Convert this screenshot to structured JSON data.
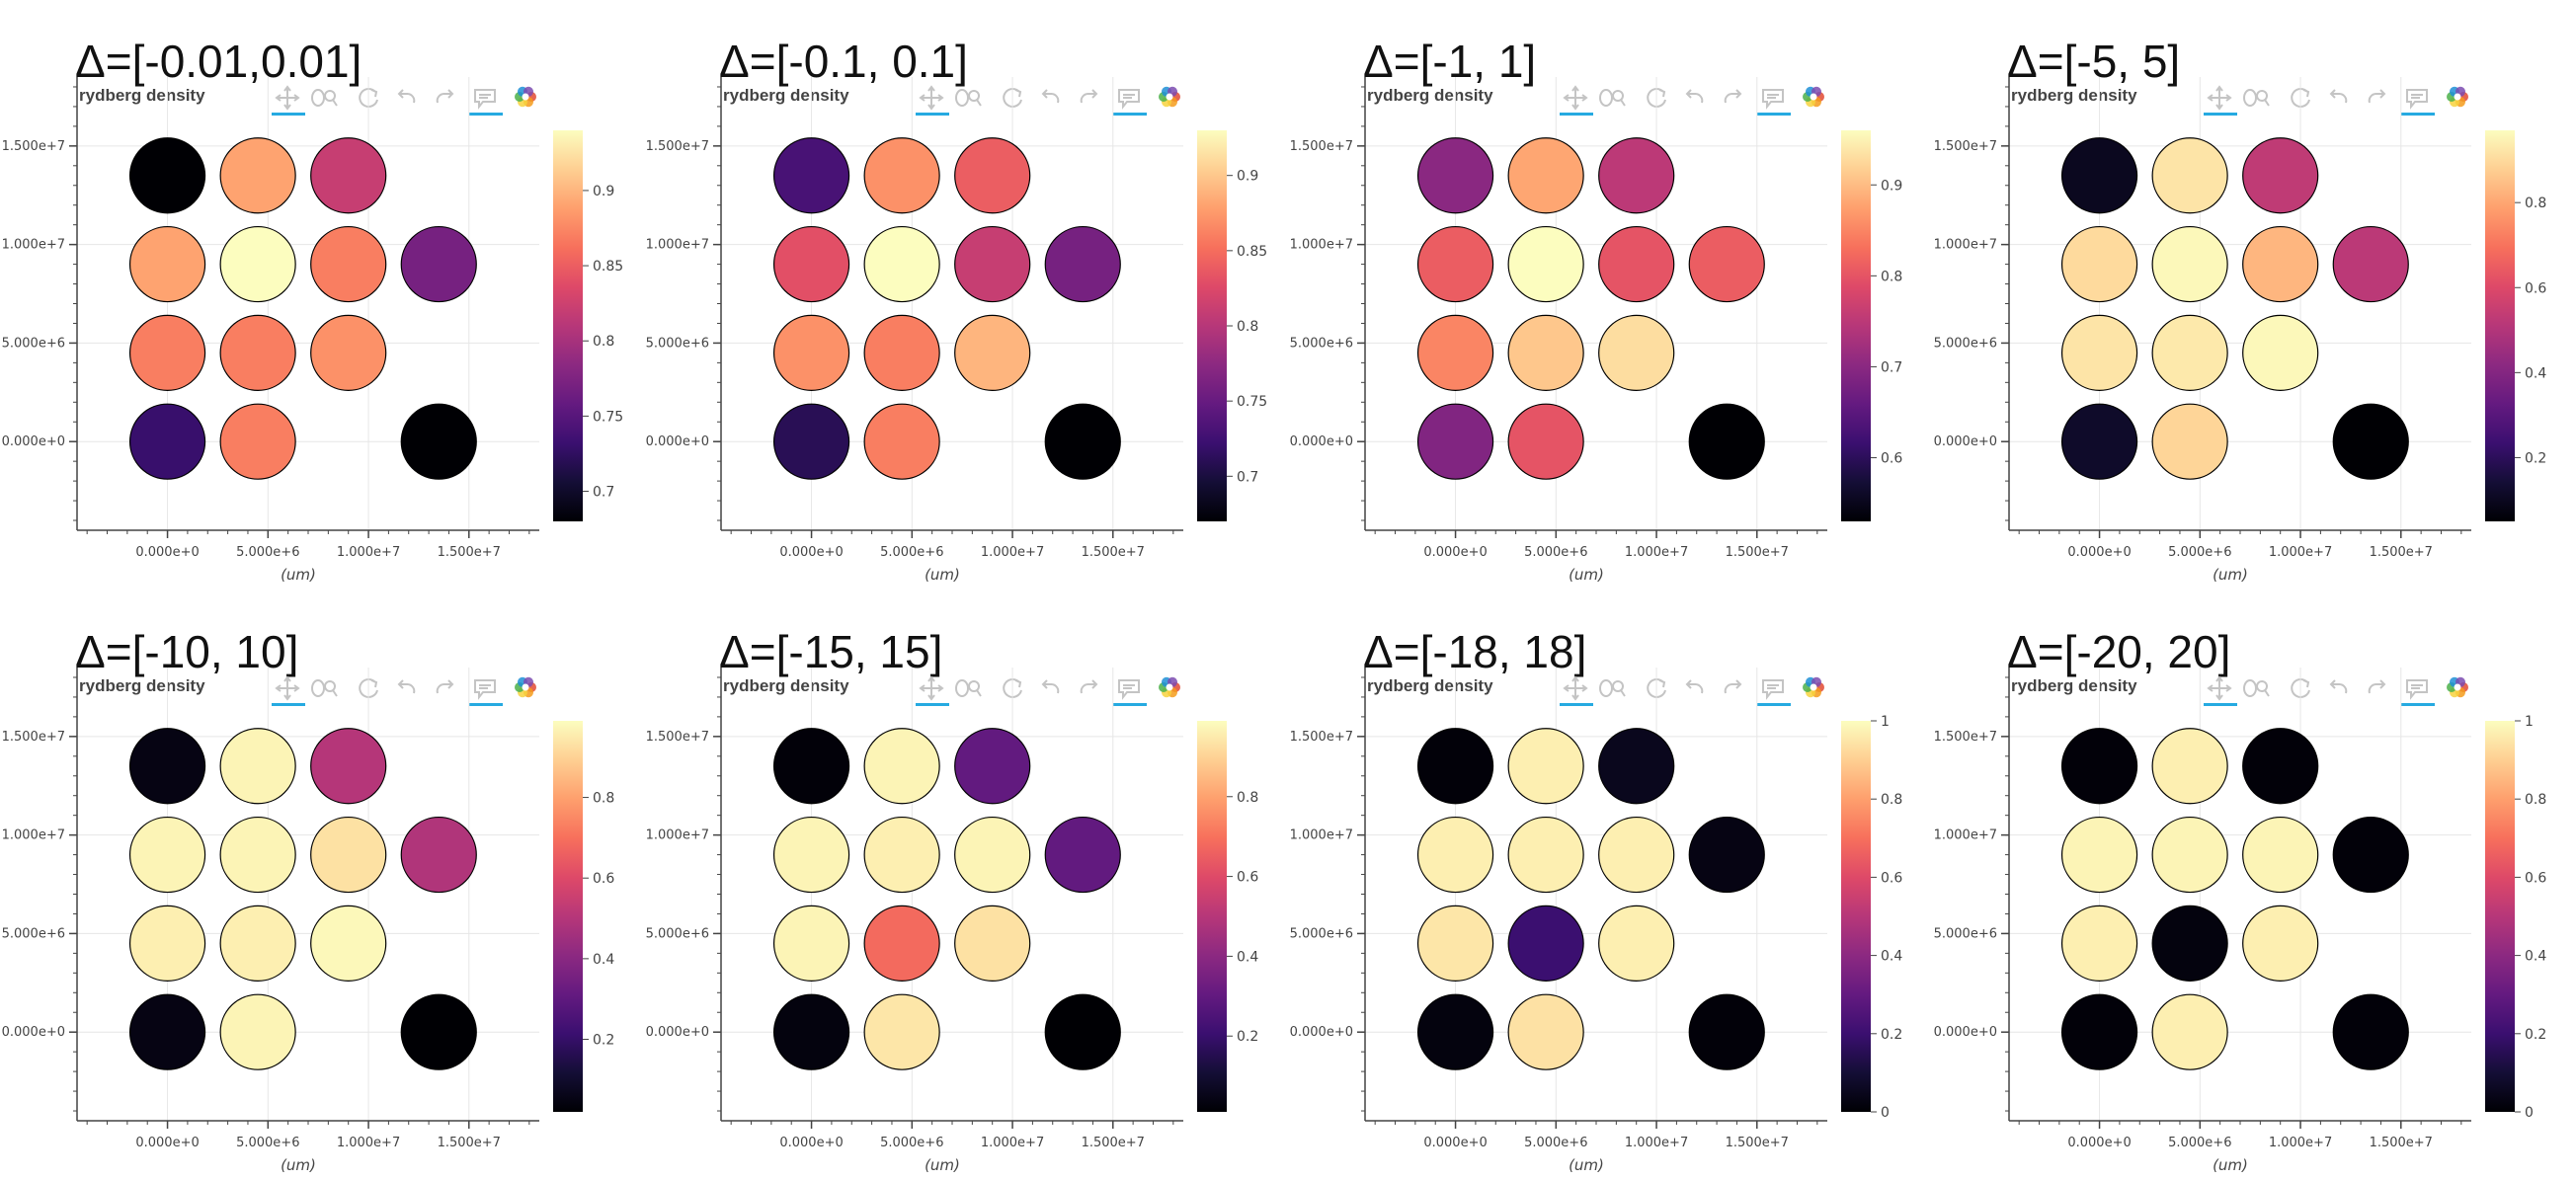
{
  "colors": {
    "background": "#ffffff",
    "grid": "#e6e6e6",
    "axis": "#444444",
    "marker_outline": "#000000",
    "toolbar_active": "#26aae1",
    "toolbar_icon": "#c4c4c4",
    "colormap": "magma"
  },
  "toolbar": {
    "icons": [
      "pan-icon",
      "wheel-zoom-icon",
      "reset-icon",
      "undo-icon",
      "redo-icon",
      "hover-icon",
      "bokeh-logo-icon"
    ]
  },
  "chart_data": [
    {
      "type": "scatter",
      "panel_title": "Δ=[-0.01,0.01]",
      "title": "rydberg density",
      "xlabel": "(um)",
      "x_ticks": [
        "0.000e+0",
        "5.000e+6",
        "1.000e+7",
        "1.500e+7"
      ],
      "y_ticks": [
        "0.000e+0",
        "5.000e+6",
        "1.000e+7",
        "1.500e+7"
      ],
      "xlim": [
        -4500000,
        18500000
      ],
      "ylim": [
        -4500000,
        18500000
      ],
      "colorbar": {
        "min": 0.68,
        "max": 0.94,
        "ticks": [
          0.7,
          0.75,
          0.8,
          0.85,
          0.9
        ],
        "tick_labels": [
          "0.7",
          "0.75",
          "0.8",
          "0.85",
          "0.9"
        ]
      },
      "points": [
        {
          "x": 0,
          "y": 13500000,
          "value": 0.68
        },
        {
          "x": 4500000,
          "y": 13500000,
          "value": 0.89
        },
        {
          "x": 9000000,
          "y": 13500000,
          "value": 0.82
        },
        {
          "x": 0,
          "y": 9000000,
          "value": 0.89
        },
        {
          "x": 4500000,
          "y": 9000000,
          "value": 0.94
        },
        {
          "x": 9000000,
          "y": 9000000,
          "value": 0.87
        },
        {
          "x": 13500000,
          "y": 9000000,
          "value": 0.77
        },
        {
          "x": 0,
          "y": 4500000,
          "value": 0.87
        },
        {
          "x": 4500000,
          "y": 4500000,
          "value": 0.87
        },
        {
          "x": 9000000,
          "y": 4500000,
          "value": 0.88
        },
        {
          "x": 0,
          "y": 0,
          "value": 0.73
        },
        {
          "x": 4500000,
          "y": 0,
          "value": 0.87
        },
        {
          "x": 13500000,
          "y": 0,
          "value": 0.68
        }
      ]
    },
    {
      "type": "scatter",
      "panel_title": "Δ=[-0.1, 0.1]",
      "title": "rydberg density",
      "xlabel": "(um)",
      "x_ticks": [
        "0.000e+0",
        "5.000e+6",
        "1.000e+7",
        "1.500e+7"
      ],
      "y_ticks": [
        "0.000e+0",
        "5.000e+6",
        "1.000e+7",
        "1.500e+7"
      ],
      "xlim": [
        -4500000,
        18500000
      ],
      "ylim": [
        -4500000,
        18500000
      ],
      "colorbar": {
        "min": 0.67,
        "max": 0.93,
        "ticks": [
          0.7,
          0.75,
          0.8,
          0.85,
          0.9
        ],
        "tick_labels": [
          "0.7",
          "0.75",
          "0.8",
          "0.85",
          "0.9"
        ]
      },
      "points": [
        {
          "x": 0,
          "y": 13500000,
          "value": 0.73
        },
        {
          "x": 4500000,
          "y": 13500000,
          "value": 0.87
        },
        {
          "x": 9000000,
          "y": 13500000,
          "value": 0.84
        },
        {
          "x": 0,
          "y": 9000000,
          "value": 0.83
        },
        {
          "x": 4500000,
          "y": 9000000,
          "value": 0.93
        },
        {
          "x": 9000000,
          "y": 9000000,
          "value": 0.81
        },
        {
          "x": 13500000,
          "y": 9000000,
          "value": 0.76
        },
        {
          "x": 0,
          "y": 4500000,
          "value": 0.87
        },
        {
          "x": 4500000,
          "y": 4500000,
          "value": 0.86
        },
        {
          "x": 9000000,
          "y": 4500000,
          "value": 0.89
        },
        {
          "x": 0,
          "y": 0,
          "value": 0.71
        },
        {
          "x": 4500000,
          "y": 0,
          "value": 0.86
        },
        {
          "x": 13500000,
          "y": 0,
          "value": 0.67
        }
      ]
    },
    {
      "type": "scatter",
      "panel_title": "Δ=[-1, 1]",
      "title": "rydberg density",
      "xlabel": "(um)",
      "x_ticks": [
        "0.000e+0",
        "5.000e+6",
        "1.000e+7",
        "1.500e+7"
      ],
      "y_ticks": [
        "0.000e+0",
        "5.000e+6",
        "1.000e+7",
        "1.500e+7"
      ],
      "xlim": [
        -4500000,
        18500000
      ],
      "ylim": [
        -4500000,
        18500000
      ],
      "colorbar": {
        "min": 0.53,
        "max": 0.96,
        "ticks": [
          0.6,
          0.7,
          0.8,
          0.9
        ],
        "tick_labels": [
          "0.6",
          "0.7",
          "0.8",
          "0.9"
        ]
      },
      "points": [
        {
          "x": 0,
          "y": 13500000,
          "value": 0.7
        },
        {
          "x": 4500000,
          "y": 13500000,
          "value": 0.88
        },
        {
          "x": 9000000,
          "y": 13500000,
          "value": 0.75
        },
        {
          "x": 0,
          "y": 9000000,
          "value": 0.81
        },
        {
          "x": 4500000,
          "y": 9000000,
          "value": 0.96
        },
        {
          "x": 9000000,
          "y": 9000000,
          "value": 0.8
        },
        {
          "x": 13500000,
          "y": 9000000,
          "value": 0.81
        },
        {
          "x": 0,
          "y": 4500000,
          "value": 0.85
        },
        {
          "x": 4500000,
          "y": 4500000,
          "value": 0.91
        },
        {
          "x": 9000000,
          "y": 4500000,
          "value": 0.93
        },
        {
          "x": 0,
          "y": 0,
          "value": 0.69
        },
        {
          "x": 4500000,
          "y": 0,
          "value": 0.8
        },
        {
          "x": 13500000,
          "y": 0,
          "value": 0.53
        }
      ]
    },
    {
      "type": "scatter",
      "panel_title": "Δ=[-5, 5]",
      "title": "rydberg density",
      "xlabel": "(um)",
      "x_ticks": [
        "0.000e+0",
        "5.000e+6",
        "1.000e+7",
        "1.500e+7"
      ],
      "y_ticks": [
        "0.000e+0",
        "5.000e+6",
        "1.000e+7",
        "1.500e+7"
      ],
      "xlim": [
        -4500000,
        18500000
      ],
      "ylim": [
        -4500000,
        18500000
      ],
      "colorbar": {
        "min": 0.05,
        "max": 0.97,
        "ticks": [
          0.2,
          0.4,
          0.6,
          0.8
        ],
        "tick_labels": [
          "0.2",
          "0.4",
          "0.6",
          "0.8"
        ]
      },
      "points": [
        {
          "x": 0,
          "y": 13500000,
          "value": 0.1
        },
        {
          "x": 4500000,
          "y": 13500000,
          "value": 0.92
        },
        {
          "x": 9000000,
          "y": 13500000,
          "value": 0.53
        },
        {
          "x": 0,
          "y": 9000000,
          "value": 0.9
        },
        {
          "x": 4500000,
          "y": 9000000,
          "value": 0.96
        },
        {
          "x": 9000000,
          "y": 9000000,
          "value": 0.83
        },
        {
          "x": 13500000,
          "y": 9000000,
          "value": 0.52
        },
        {
          "x": 0,
          "y": 4500000,
          "value": 0.92
        },
        {
          "x": 4500000,
          "y": 4500000,
          "value": 0.93
        },
        {
          "x": 9000000,
          "y": 4500000,
          "value": 0.96
        },
        {
          "x": 0,
          "y": 0,
          "value": 0.12
        },
        {
          "x": 4500000,
          "y": 0,
          "value": 0.89
        },
        {
          "x": 13500000,
          "y": 0,
          "value": 0.05
        }
      ]
    },
    {
      "type": "scatter",
      "panel_title": "Δ=[-10, 10]",
      "title": "rydberg density",
      "xlabel": "(um)",
      "x_ticks": [
        "0.000e+0",
        "5.000e+6",
        "1.000e+7",
        "1.500e+7"
      ],
      "y_ticks": [
        "0.000e+0",
        "5.000e+6",
        "1.000e+7",
        "1.500e+7"
      ],
      "xlim": [
        -4500000,
        18500000
      ],
      "ylim": [
        -4500000,
        18500000
      ],
      "colorbar": {
        "min": 0.02,
        "max": 0.99,
        "ticks": [
          0.2,
          0.4,
          0.6,
          0.8
        ],
        "tick_labels": [
          "0.2",
          "0.4",
          "0.6",
          "0.8"
        ]
      },
      "points": [
        {
          "x": 0,
          "y": 13500000,
          "value": 0.05
        },
        {
          "x": 4500000,
          "y": 13500000,
          "value": 0.97
        },
        {
          "x": 9000000,
          "y": 13500000,
          "value": 0.5
        },
        {
          "x": 0,
          "y": 9000000,
          "value": 0.97
        },
        {
          "x": 4500000,
          "y": 9000000,
          "value": 0.97
        },
        {
          "x": 9000000,
          "y": 9000000,
          "value": 0.93
        },
        {
          "x": 13500000,
          "y": 9000000,
          "value": 0.49
        },
        {
          "x": 0,
          "y": 4500000,
          "value": 0.96
        },
        {
          "x": 4500000,
          "y": 4500000,
          "value": 0.96
        },
        {
          "x": 9000000,
          "y": 4500000,
          "value": 0.98
        },
        {
          "x": 0,
          "y": 0,
          "value": 0.05
        },
        {
          "x": 4500000,
          "y": 0,
          "value": 0.97
        },
        {
          "x": 13500000,
          "y": 0,
          "value": 0.02
        }
      ]
    },
    {
      "type": "scatter",
      "panel_title": "Δ=[-15, 15]",
      "title": "rydberg density",
      "xlabel": "(um)",
      "x_ticks": [
        "0.000e+0",
        "5.000e+6",
        "1.000e+7",
        "1.500e+7"
      ],
      "y_ticks": [
        "0.000e+0",
        "5.000e+6",
        "1.000e+7",
        "1.500e+7"
      ],
      "xlim": [
        -4500000,
        18500000
      ],
      "ylim": [
        -4500000,
        18500000
      ],
      "colorbar": {
        "min": 0.01,
        "max": 0.99,
        "ticks": [
          0.2,
          0.4,
          0.6,
          0.8
        ],
        "tick_labels": [
          "0.2",
          "0.4",
          "0.6",
          "0.8"
        ]
      },
      "points": [
        {
          "x": 0,
          "y": 13500000,
          "value": 0.02
        },
        {
          "x": 4500000,
          "y": 13500000,
          "value": 0.97
        },
        {
          "x": 9000000,
          "y": 13500000,
          "value": 0.3
        },
        {
          "x": 0,
          "y": 9000000,
          "value": 0.97
        },
        {
          "x": 4500000,
          "y": 9000000,
          "value": 0.96
        },
        {
          "x": 9000000,
          "y": 9000000,
          "value": 0.97
        },
        {
          "x": 13500000,
          "y": 9000000,
          "value": 0.3
        },
        {
          "x": 0,
          "y": 4500000,
          "value": 0.97
        },
        {
          "x": 4500000,
          "y": 4500000,
          "value": 0.68
        },
        {
          "x": 9000000,
          "y": 4500000,
          "value": 0.93
        },
        {
          "x": 0,
          "y": 0,
          "value": 0.03
        },
        {
          "x": 4500000,
          "y": 0,
          "value": 0.94
        },
        {
          "x": 13500000,
          "y": 0,
          "value": 0.01
        }
      ]
    },
    {
      "type": "scatter",
      "panel_title": "Δ=[-18, 18]",
      "title": "rydberg density",
      "xlabel": "(um)",
      "x_ticks": [
        "0.000e+0",
        "5.000e+6",
        "1.000e+7",
        "1.500e+7"
      ],
      "y_ticks": [
        "0.000e+0",
        "5.000e+6",
        "1.000e+7",
        "1.500e+7"
      ],
      "xlim": [
        -4500000,
        18500000
      ],
      "ylim": [
        -4500000,
        18500000
      ],
      "colorbar": {
        "min": 0,
        "max": 1,
        "ticks": [
          0,
          0.2,
          0.4,
          0.6,
          0.8,
          1
        ],
        "tick_labels": [
          "0",
          "0.2",
          "0.4",
          "0.6",
          "0.8",
          "1"
        ]
      },
      "points": [
        {
          "x": 0,
          "y": 13500000,
          "value": 0.01
        },
        {
          "x": 4500000,
          "y": 13500000,
          "value": 0.97
        },
        {
          "x": 9000000,
          "y": 13500000,
          "value": 0.05
        },
        {
          "x": 0,
          "y": 9000000,
          "value": 0.97
        },
        {
          "x": 4500000,
          "y": 9000000,
          "value": 0.97
        },
        {
          "x": 9000000,
          "y": 9000000,
          "value": 0.97
        },
        {
          "x": 13500000,
          "y": 9000000,
          "value": 0.03
        },
        {
          "x": 0,
          "y": 4500000,
          "value": 0.95
        },
        {
          "x": 4500000,
          "y": 4500000,
          "value": 0.2
        },
        {
          "x": 9000000,
          "y": 4500000,
          "value": 0.97
        },
        {
          "x": 0,
          "y": 0,
          "value": 0.02
        },
        {
          "x": 4500000,
          "y": 0,
          "value": 0.94
        },
        {
          "x": 13500000,
          "y": 0,
          "value": 0.01
        }
      ]
    },
    {
      "type": "scatter",
      "panel_title": "Δ=[-20, 20]",
      "title": "rydberg density",
      "xlabel": "(um)",
      "x_ticks": [
        "0.000e+0",
        "5.000e+6",
        "1.000e+7",
        "1.500e+7"
      ],
      "y_ticks": [
        "0.000e+0",
        "5.000e+6",
        "1.000e+7",
        "1.500e+7"
      ],
      "xlim": [
        -4500000,
        18500000
      ],
      "ylim": [
        -4500000,
        18500000
      ],
      "colorbar": {
        "min": 0,
        "max": 1,
        "ticks": [
          0,
          0.2,
          0.4,
          0.6,
          0.8,
          1
        ],
        "tick_labels": [
          "0",
          "0.2",
          "0.4",
          "0.6",
          "0.8",
          "1"
        ]
      },
      "points": [
        {
          "x": 0,
          "y": 13500000,
          "value": 0.01
        },
        {
          "x": 4500000,
          "y": 13500000,
          "value": 0.97
        },
        {
          "x": 9000000,
          "y": 13500000,
          "value": 0.01
        },
        {
          "x": 0,
          "y": 9000000,
          "value": 0.98
        },
        {
          "x": 4500000,
          "y": 9000000,
          "value": 0.98
        },
        {
          "x": 9000000,
          "y": 9000000,
          "value": 0.98
        },
        {
          "x": 13500000,
          "y": 9000000,
          "value": 0.01
        },
        {
          "x": 0,
          "y": 4500000,
          "value": 0.97
        },
        {
          "x": 4500000,
          "y": 4500000,
          "value": 0.02
        },
        {
          "x": 9000000,
          "y": 4500000,
          "value": 0.97
        },
        {
          "x": 0,
          "y": 0,
          "value": 0.01
        },
        {
          "x": 4500000,
          "y": 0,
          "value": 0.97
        },
        {
          "x": 13500000,
          "y": 0,
          "value": 0.01
        }
      ]
    }
  ]
}
